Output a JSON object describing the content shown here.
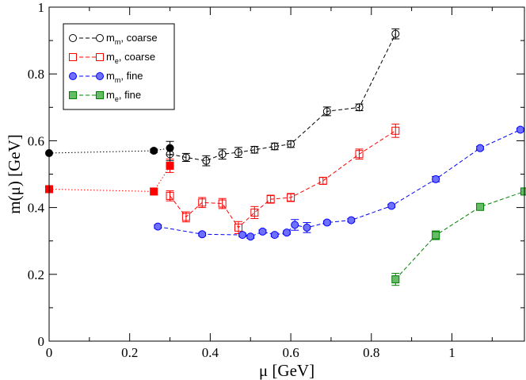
{
  "chart_data": {
    "type": "scatter",
    "title": "",
    "xlabel": "μ [GeV]",
    "ylabel": "m(μ) [GeV]",
    "xlim": [
      0,
      1.18
    ],
    "ylim": [
      0,
      1.0
    ],
    "grid": false,
    "legend_position": "top-left",
    "x_ticks": [
      {
        "value": 0,
        "label": "0"
      },
      {
        "value": 0.2,
        "label": "0.2"
      },
      {
        "value": 0.4,
        "label": "0.4"
      },
      {
        "value": 0.6,
        "label": "0.6"
      },
      {
        "value": 0.8,
        "label": "0.8"
      },
      {
        "value": 1.0,
        "label": "1"
      }
    ],
    "y_ticks": [
      {
        "value": 0,
        "label": "0"
      },
      {
        "value": 0.2,
        "label": "0.2"
      },
      {
        "value": 0.4,
        "label": "0.4"
      },
      {
        "value": 0.6,
        "label": "0.6"
      },
      {
        "value": 0.8,
        "label": "0.8"
      },
      {
        "value": 1.0,
        "label": "1"
      }
    ],
    "series": [
      {
        "name": "m_m, coarse",
        "legend_main": "m",
        "legend_sub": "m",
        "legend_rest": ", coarse",
        "color": "#000000",
        "marker": "circle",
        "filled": false,
        "x": [
          0.3,
          0.34,
          0.39,
          0.43,
          0.47,
          0.51,
          0.56,
          0.6,
          0.69,
          0.77,
          0.86
        ],
        "y": [
          0.56,
          0.55,
          0.54,
          0.56,
          0.565,
          0.573,
          0.583,
          0.59,
          0.688,
          0.7,
          0.92
        ],
        "err": [
          0.02,
          0.012,
          0.015,
          0.015,
          0.015,
          0.01,
          0.01,
          0.01,
          0.013,
          0.01,
          0.015
        ]
      },
      {
        "name": "m_e, coarse",
        "legend_main": "m",
        "legend_sub": "e",
        "legend_rest": ", coarse",
        "color": "#ff0000",
        "marker": "square",
        "filled": false,
        "x": [
          0.3,
          0.34,
          0.38,
          0.43,
          0.47,
          0.51,
          0.55,
          0.6,
          0.68,
          0.77,
          0.86
        ],
        "y": [
          0.435,
          0.372,
          0.415,
          0.412,
          0.34,
          0.385,
          0.425,
          0.43,
          0.48,
          0.56,
          0.63
        ],
        "err": [
          0.015,
          0.015,
          0.015,
          0.015,
          0.018,
          0.018,
          0.012,
          0.012,
          0.01,
          0.015,
          0.02
        ]
      },
      {
        "name": "m_m, fine",
        "legend_main": "m",
        "legend_sub": "m",
        "legend_rest": ", fine",
        "color": "#0000ff",
        "marker": "circle",
        "filled": true,
        "fill": "#7070ff",
        "x": [
          0.27,
          0.38,
          0.48,
          0.5,
          0.53,
          0.56,
          0.59,
          0.61,
          0.64,
          0.69,
          0.75,
          0.85,
          0.96,
          1.07,
          1.17
        ],
        "y": [
          0.343,
          0.32,
          0.318,
          0.313,
          0.328,
          0.318,
          0.325,
          0.348,
          0.34,
          0.355,
          0.362,
          0.405,
          0.485,
          0.578,
          0.633
        ],
        "err": [
          0.005,
          0.005,
          0.005,
          0.005,
          0.005,
          0.005,
          0.005,
          0.016,
          0.015,
          0.005,
          0.005,
          0.005,
          0.008,
          0.005,
          0.005
        ]
      },
      {
        "name": "m_e, fine",
        "legend_main": "m",
        "legend_sub": "e",
        "legend_rest": ", fine",
        "color": "#008000",
        "marker": "square",
        "filled": true,
        "fill": "#66bb66",
        "x": [
          0.86,
          0.96,
          1.07,
          1.18
        ],
        "y": [
          0.185,
          0.317,
          0.402,
          0.448
        ],
        "err": [
          0.018,
          0.013,
          0.007,
          0.007
        ]
      }
    ],
    "extrapolations": [
      {
        "color": "#000000",
        "x": [
          0,
          0.26,
          0.3
        ],
        "y": [
          0.563,
          0.57,
          0.578
        ],
        "err": [
          0,
          0.005,
          0.02
        ]
      },
      {
        "color": "#ff0000",
        "x": [
          0,
          0.26,
          0.3
        ],
        "y": [
          0.455,
          0.448,
          0.525
        ],
        "err": [
          0,
          0.01,
          0.02
        ]
      }
    ]
  }
}
